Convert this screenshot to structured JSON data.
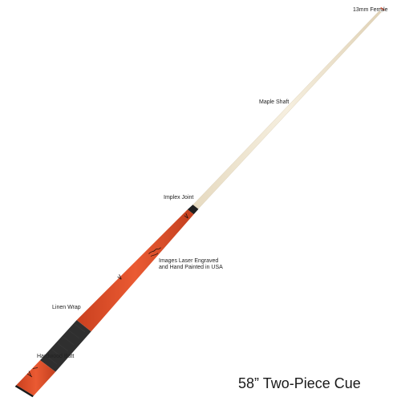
{
  "title": "58” Two-Piece Cue",
  "labels": {
    "ferrule": "13mm Ferrule",
    "shaft": "Maple Shaft",
    "joint": "Implex Joint",
    "images_line1": "Images Laser Engraved",
    "images_line2": "and Hand Painted in USA",
    "wrap": "Linen Wrap",
    "butt": "Hardwood Butt"
  },
  "colors": {
    "shaft": "#f1e8d5",
    "shaft_edge": "#d9ccb2",
    "butt_red": "#e2502a",
    "butt_red_dark": "#b93a1d",
    "joint": "#1e1e1e",
    "wrap": "#2e2e2e",
    "ferrule": "#ffffff",
    "tip": "#e06040"
  }
}
